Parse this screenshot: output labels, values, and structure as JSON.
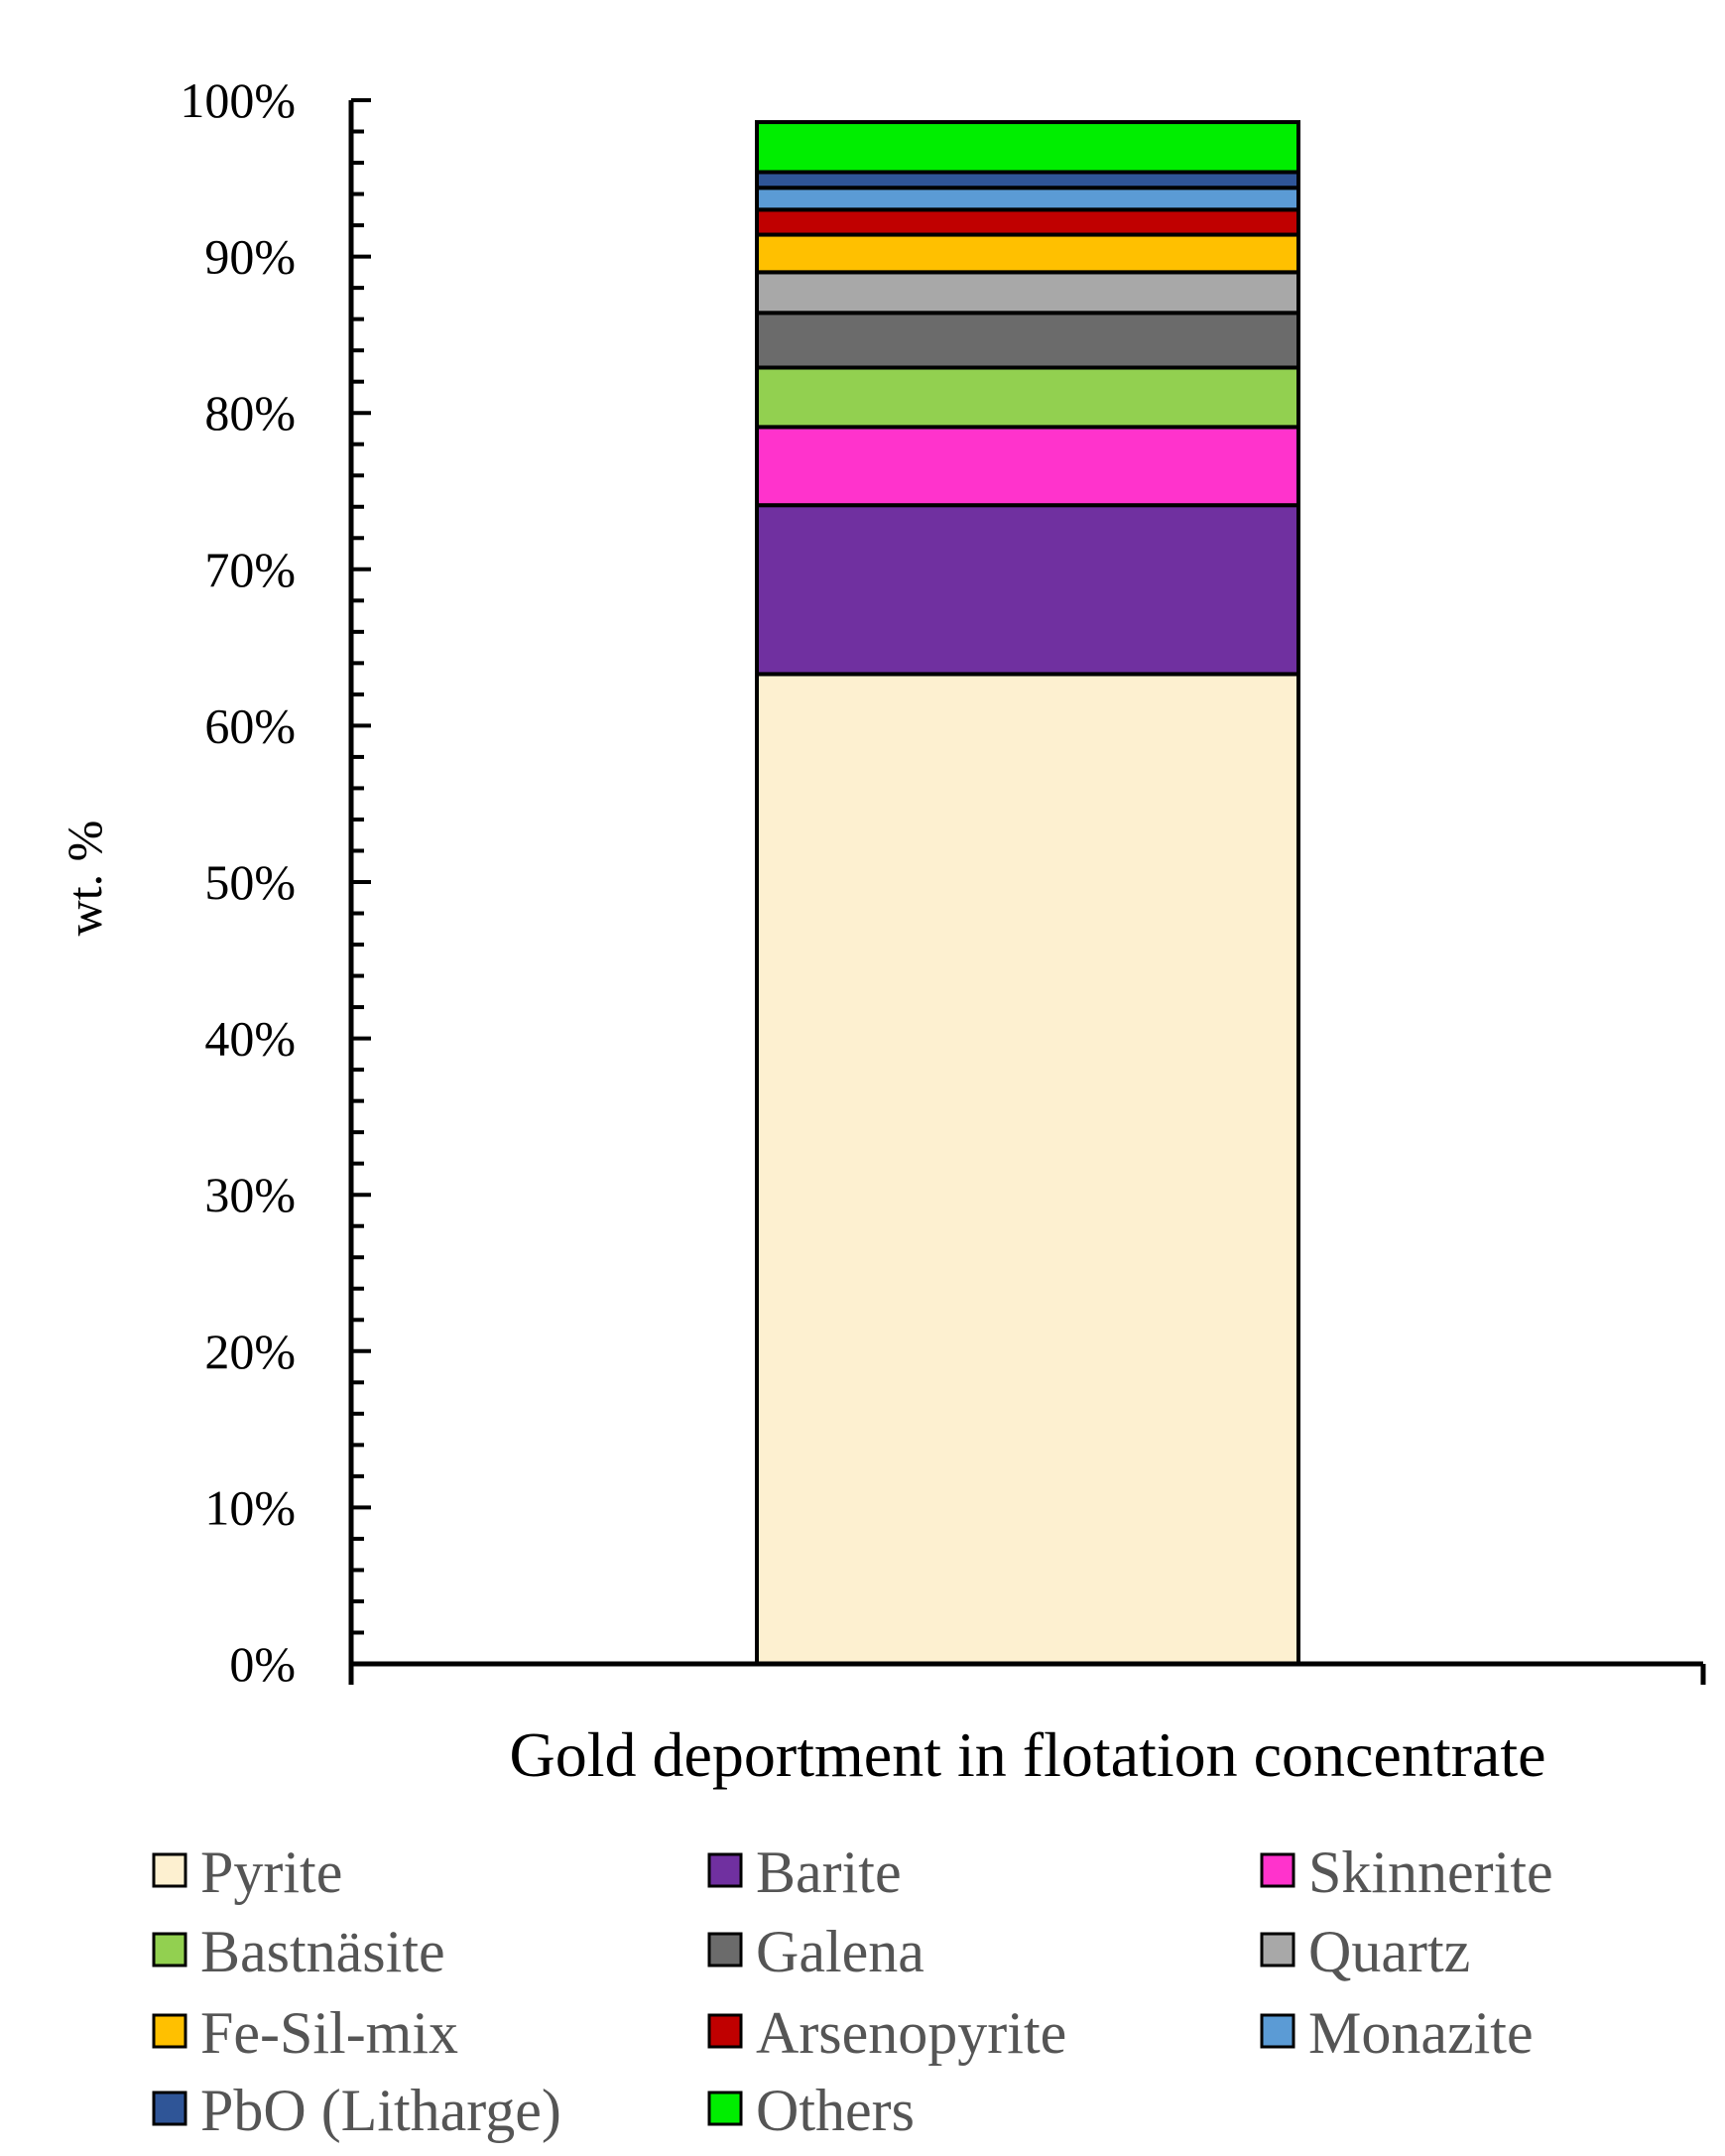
{
  "chart_data": {
    "type": "bar",
    "stacked": true,
    "categories": [
      "Gold deportment in flotation concentrate"
    ],
    "ylabel": "wt. %",
    "ylim": [
      0,
      100
    ],
    "yticks": [
      "0%",
      "10%",
      "20%",
      "30%",
      "40%",
      "50%",
      "60%",
      "70%",
      "80%",
      "90%",
      "100%"
    ],
    "series": [
      {
        "name": "Pyrite",
        "values": [
          63.3
        ],
        "color": "#FDF0D0"
      },
      {
        "name": "Barite",
        "values": [
          10.8
        ],
        "color": "#7030A0"
      },
      {
        "name": "Skinnerite",
        "values": [
          5.0
        ],
        "color": "#FF33CC"
      },
      {
        "name": "Bastnäsite",
        "values": [
          3.8
        ],
        "color": "#92D050"
      },
      {
        "name": "Galena",
        "values": [
          3.5
        ],
        "color": "#6B6B6B"
      },
      {
        "name": "Quartz",
        "values": [
          2.6
        ],
        "color": "#A8A8A8"
      },
      {
        "name": "Fe-Sil-mix",
        "values": [
          2.4
        ],
        "color": "#FFC000"
      },
      {
        "name": "Arsenopyrite",
        "values": [
          1.6
        ],
        "color": "#C00000"
      },
      {
        "name": "Monazite",
        "values": [
          1.4
        ],
        "color": "#5B9BD5"
      },
      {
        "name": "PbO (Litharge)",
        "values": [
          1.0
        ],
        "color": "#2F5597"
      },
      {
        "name": "Others",
        "values": [
          3.2
        ],
        "color": "#00EE00"
      }
    ],
    "legend": {
      "position": "bottom",
      "columns": 3
    }
  }
}
